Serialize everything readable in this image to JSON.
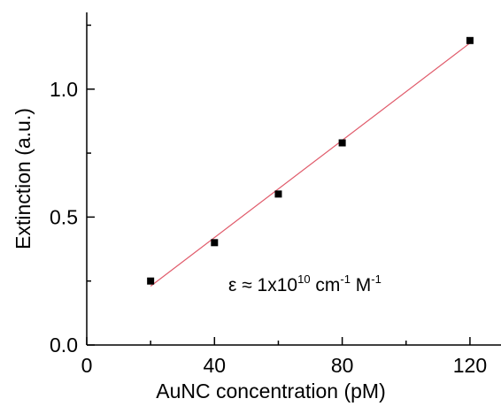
{
  "chart_data": {
    "type": "scatter",
    "xlabel": "AuNC concentration (pM)",
    "ylabel": "Extinction (a.u.)",
    "xlim": [
      0,
      130
    ],
    "ylim": [
      0,
      1.3
    ],
    "x_ticks": [
      0,
      40,
      80,
      120
    ],
    "x_tick_labels": [
      "0",
      "40",
      "80",
      "120"
    ],
    "y_ticks": [
      0.0,
      0.5,
      1.0
    ],
    "y_tick_labels": [
      "0.0",
      "0.5",
      "1.0"
    ],
    "grid": false,
    "series": [
      {
        "marker": "square",
        "color": "#000000",
        "x": [
          20,
          40,
          60,
          80,
          120
        ],
        "y": [
          0.25,
          0.4,
          0.59,
          0.79,
          1.19
        ]
      }
    ],
    "fit_line": {
      "color": "#e05a6a",
      "x": [
        20,
        120
      ],
      "y": [
        0.23,
        1.18
      ]
    },
    "annotation": {
      "prefix": "ε ≈ 1x10",
      "sup1": "10",
      "mid": " cm",
      "sup2": "-1",
      "mid2": " M",
      "sup3": "-1"
    }
  }
}
